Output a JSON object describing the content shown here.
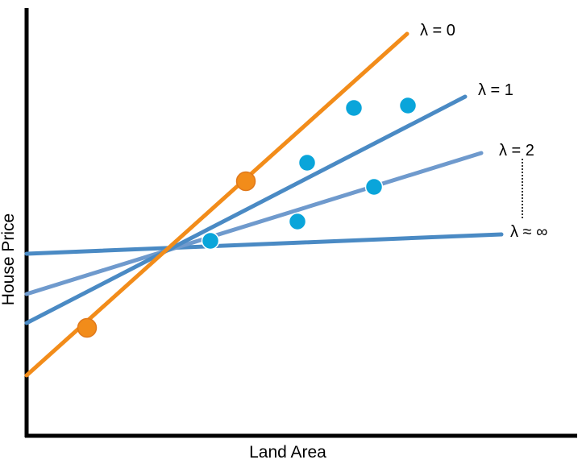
{
  "axes": {
    "xlabel": "Land Area",
    "ylabel": "House Price"
  },
  "lines": [
    {
      "label": "λ = 0",
      "color": "#F28C1A"
    },
    {
      "label": "λ = 1",
      "color": "#4A8AC4"
    },
    {
      "label": "λ = 2",
      "color": "#6F9ACD"
    },
    {
      "label": "λ ≈ ∞",
      "color": "#4A8AC4"
    }
  ],
  "point_colors": {
    "training": "#F28C1A",
    "testing": "#0AA5DA"
  }
}
